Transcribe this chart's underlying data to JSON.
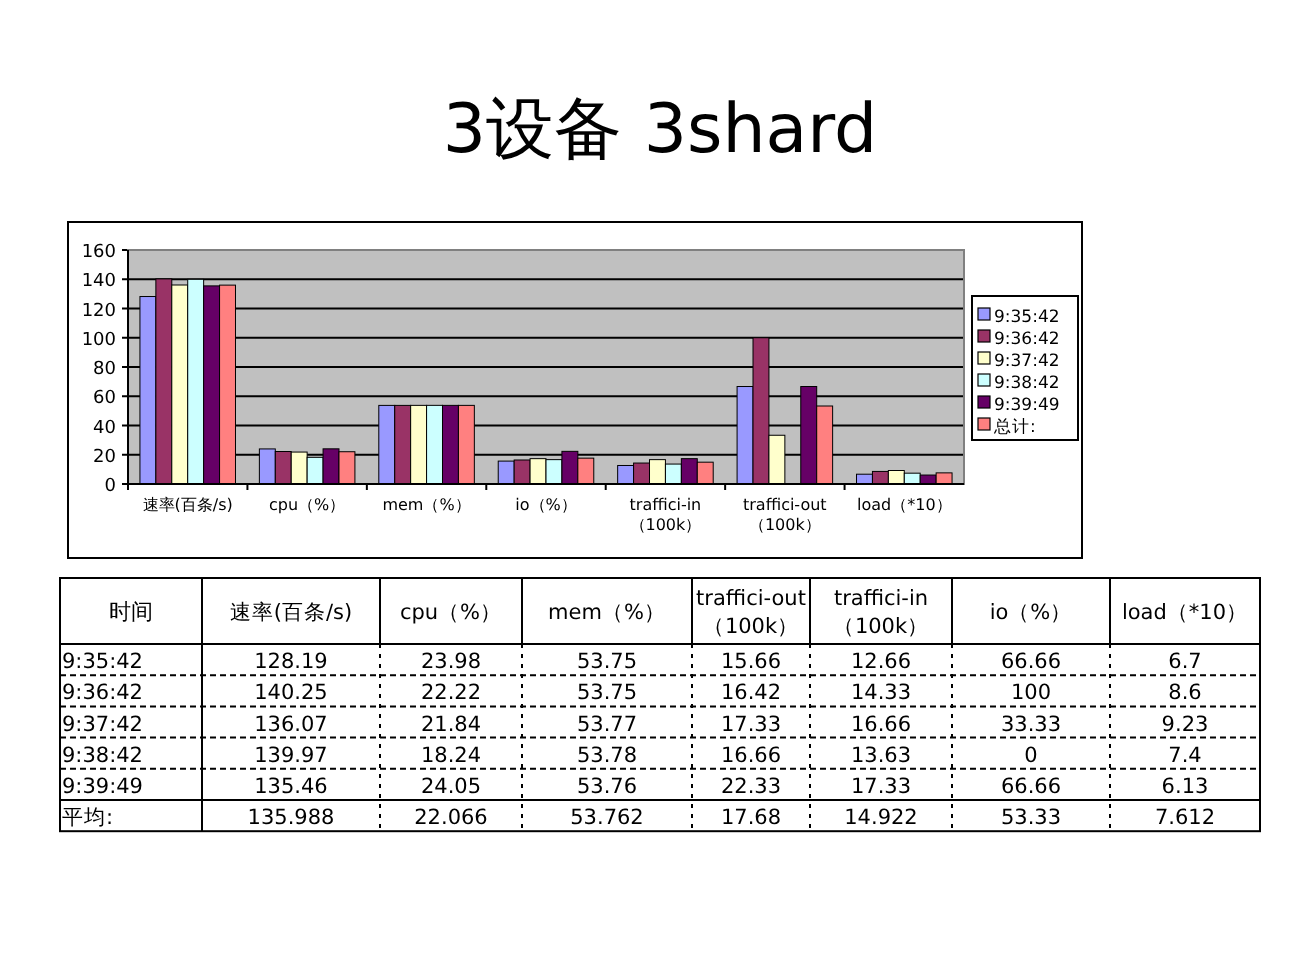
{
  "chart_data": [
    {
      "type": "bar",
      "title": "3设备 3shard",
      "categories": [
        "速率(百条/s)",
        "cpu（%）",
        "mem（%）",
        "io（%）",
        "traffici-in （100k）",
        "traffici-out （100k）",
        "load（*10）"
      ],
      "series": [
        {
          "name": "9:35:42",
          "color": "#9999ff",
          "values": [
            128.19,
            23.98,
            53.75,
            15.66,
            12.66,
            66.66,
            6.7
          ]
        },
        {
          "name": "9:36:42",
          "color": "#993366",
          "values": [
            140.25,
            22.22,
            53.75,
            16.42,
            14.33,
            100,
            8.6
          ]
        },
        {
          "name": "9:37:42",
          "color": "#ffffcc",
          "values": [
            136.07,
            21.84,
            53.77,
            17.33,
            16.66,
            33.33,
            9.23
          ]
        },
        {
          "name": "9:38:42",
          "color": "#ccffff",
          "values": [
            139.97,
            18.24,
            53.78,
            16.66,
            13.63,
            0,
            7.4
          ]
        },
        {
          "name": "9:39:49",
          "color": "#660066",
          "values": [
            135.46,
            24.05,
            53.76,
            22.33,
            17.33,
            66.66,
            6.13
          ]
        },
        {
          "name": "总计:",
          "color": "#ff8080",
          "values": [
            135.988,
            22.066,
            53.762,
            17.68,
            14.922,
            53.33,
            7.612
          ]
        }
      ],
      "ylim": [
        0,
        160
      ],
      "yticks": [
        0,
        20,
        40,
        60,
        80,
        100,
        120,
        140,
        160
      ],
      "grid": "y",
      "legend": "right"
    },
    {
      "type": "heatmap",
      "ylabel": "时间",
      "data_labels": true,
      "categories": [
        "速率(百条/s)",
        "cpu（%）",
        "mem（%）",
        "traffici-out （100k）",
        "traffici-in （100k）",
        "io（%）",
        "load（*10）"
      ],
      "y_categories": [
        "9:35:42",
        "9:36:42",
        "9:37:42",
        "9:38:42",
        "9:39:49",
        "平均:"
      ],
      "cells": [
        [
          128.19,
          23.98,
          53.75,
          15.66,
          12.66,
          66.66,
          6.7
        ],
        [
          140.25,
          22.22,
          53.75,
          16.42,
          14.33,
          100,
          8.6
        ],
        [
          136.07,
          21.84,
          53.77,
          17.33,
          16.66,
          33.33,
          9.23
        ],
        [
          139.97,
          18.24,
          53.78,
          16.66,
          13.63,
          0,
          7.4
        ],
        [
          135.46,
          24.05,
          53.76,
          22.33,
          17.33,
          66.66,
          6.13
        ],
        [
          135.988,
          22.066,
          53.762,
          17.68,
          14.922,
          53.33,
          7.612
        ]
      ]
    }
  ]
}
